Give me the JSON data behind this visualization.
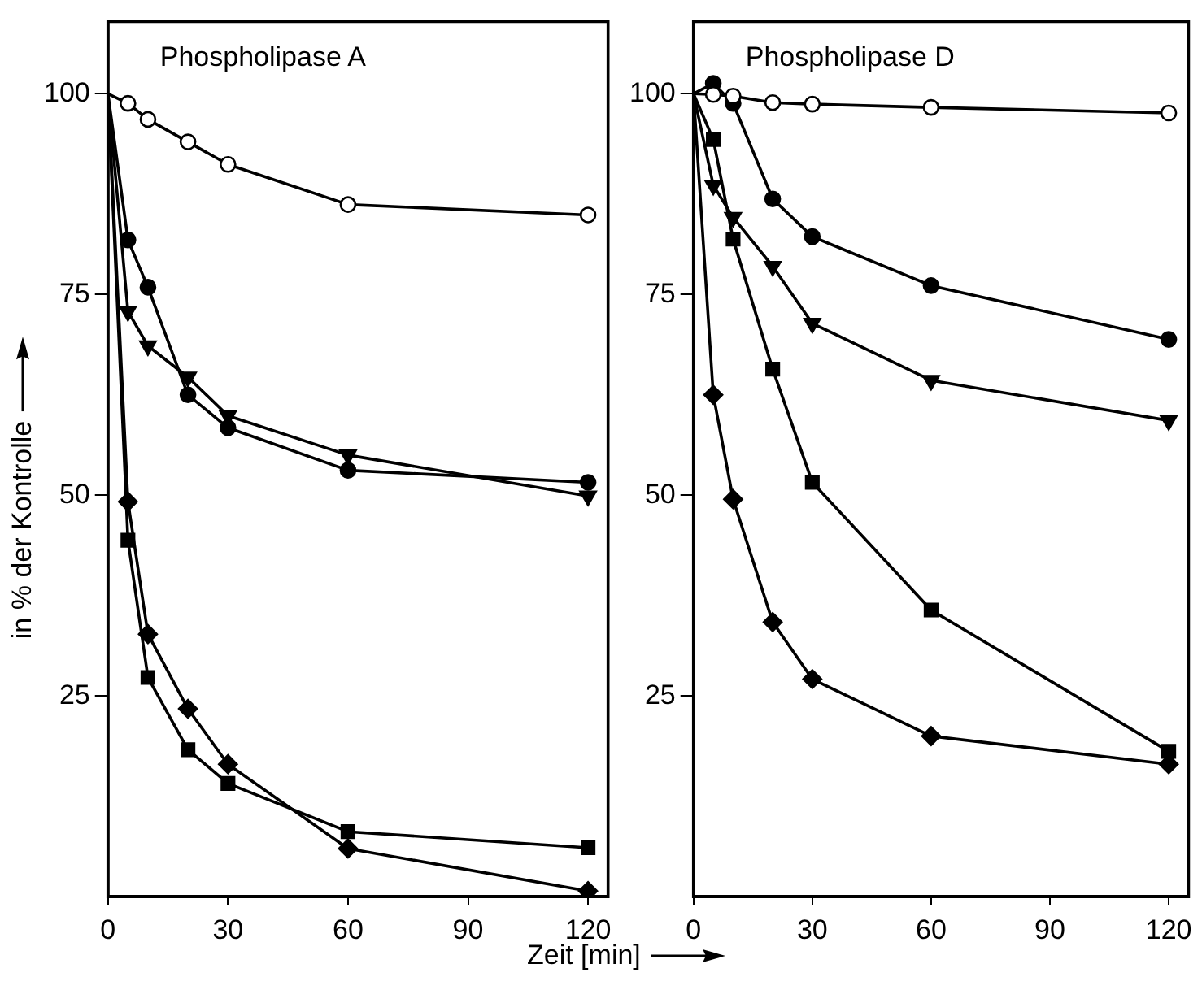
{
  "chart_data": [
    {
      "type": "line",
      "title": "Phospholipase A",
      "ylabel": "in % der Kontrolle",
      "x": [
        0,
        5,
        10,
        20,
        30,
        60,
        120
      ],
      "xlim": [
        0,
        125
      ],
      "xticks": [
        0,
        30,
        60,
        90,
        120
      ],
      "ylim": [
        0,
        109
      ],
      "yticks": [
        25,
        50,
        75,
        100
      ],
      "grid": false,
      "legend": false,
      "line_style": "solid",
      "series": [
        {
          "color": "#000000",
          "marker": "circle",
          "colors": [
            null,
            "#ffffff",
            "#ffffff",
            "#ffffff",
            "#ffffff",
            "#ffffff",
            "#ffffff"
          ],
          "values": [
            100,
            98.8,
            96.8,
            94.0,
            91.2,
            86.2,
            84.9
          ]
        },
        {
          "color": "#000000",
          "marker": "circle",
          "colors": [
            null,
            "#000000",
            "#000000",
            "#000000",
            "#000000",
            "#000000",
            "#000000"
          ],
          "values": [
            100,
            81.8,
            75.9,
            62.5,
            58.4,
            53.1,
            51.6
          ]
        },
        {
          "color": "#000000",
          "marker": "triangle",
          "colors": [
            null,
            "#000000",
            "#000000",
            "#000000",
            "#000000",
            "#000000",
            "#000000"
          ],
          "values": [
            100,
            72.9,
            68.6,
            64.7,
            59.9,
            55.0,
            49.9
          ]
        },
        {
          "color": "#000000",
          "marker": "diamond",
          "colors": [
            null,
            "#000000",
            "#000000",
            "#000000",
            "#000000",
            "#000000",
            "#000000"
          ],
          "values": [
            100,
            49.2,
            32.7,
            23.4,
            16.5,
            6.0,
            0.7
          ]
        },
        {
          "color": "#000000",
          "marker": "square",
          "colors": [
            null,
            "#000000",
            "#000000",
            "#000000",
            "#000000",
            "#000000",
            "#000000"
          ],
          "values": [
            100,
            44.4,
            27.3,
            18.3,
            14.1,
            8.1,
            6.1
          ]
        }
      ]
    },
    {
      "type": "line",
      "title": "Phospholipase D",
      "xlabel": "Zeit [min]",
      "x": [
        0,
        5,
        10,
        20,
        30,
        60,
        120
      ],
      "xlim": [
        0,
        125
      ],
      "xticks": [
        0,
        30,
        60,
        90,
        120
      ],
      "ylim": [
        0,
        109
      ],
      "yticks": [
        25,
        50,
        75,
        100
      ],
      "grid": false,
      "legend": false,
      "line_style": "solid",
      "series": [
        {
          "color": "#000000",
          "marker": "circle",
          "colors": [
            null,
            "#ffffff",
            "#ffffff",
            "#ffffff",
            "#ffffff",
            "#ffffff",
            "#ffffff"
          ],
          "values": [
            100,
            99.9,
            99.7,
            98.9,
            98.7,
            98.3,
            97.6
          ]
        },
        {
          "color": "#000000",
          "marker": "circle",
          "colors": [
            null,
            "#000000",
            "#000000",
            "#000000",
            "#000000",
            "#000000",
            "#000000"
          ],
          "values": [
            100,
            101.3,
            98.8,
            86.9,
            82.2,
            76.1,
            69.4
          ]
        },
        {
          "color": "#000000",
          "marker": "triangle",
          "colors": [
            null,
            "#000000",
            "#000000",
            "#000000",
            "#000000",
            "#000000",
            "#000000"
          ],
          "values": [
            100,
            88.6,
            84.6,
            78.5,
            71.4,
            64.3,
            59.3
          ]
        },
        {
          "color": "#000000",
          "marker": "square",
          "colors": [
            null,
            "#000000",
            "#000000",
            "#000000",
            "#000000",
            "#000000",
            "#000000"
          ],
          "values": [
            100,
            94.3,
            81.9,
            65.7,
            51.6,
            35.7,
            18.1
          ]
        },
        {
          "color": "#000000",
          "marker": "diamond",
          "colors": [
            null,
            "#000000",
            "#000000",
            "#000000",
            "#000000",
            "#000000",
            "#000000"
          ],
          "values": [
            100,
            62.5,
            49.5,
            34.2,
            27.1,
            20.0,
            16.5
          ]
        }
      ]
    }
  ]
}
